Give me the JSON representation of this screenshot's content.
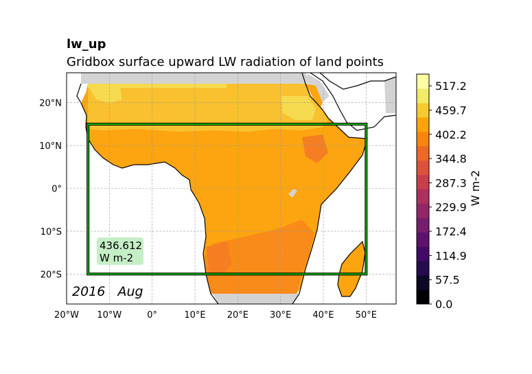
{
  "titles": {
    "short": "lw_up",
    "long": "Gridbox surface upward LW radiation of land points"
  },
  "map": {
    "extent": {
      "lon_min": -20,
      "lon_max": 57,
      "lat_min": -27,
      "lat_max": 27
    },
    "lon_ticks": [
      {
        "lon": -20,
        "label": "20°W"
      },
      {
        "lon": -10,
        "label": "10°W"
      },
      {
        "lon": 0,
        "label": "0°"
      },
      {
        "lon": 10,
        "label": "10°E"
      },
      {
        "lon": 20,
        "label": "20°E"
      },
      {
        "lon": 30,
        "label": "30°E"
      },
      {
        "lon": 40,
        "label": "40°E"
      },
      {
        "lon": 50,
        "label": "50°E"
      }
    ],
    "lat_ticks": [
      {
        "lat": 20,
        "label": "20°N"
      },
      {
        "lat": 10,
        "label": "10°N"
      },
      {
        "lat": 0,
        "label": "0°"
      },
      {
        "lat": -10,
        "label": "10°S"
      },
      {
        "lat": -20,
        "label": "20°S"
      }
    ],
    "grid": true,
    "region_box": {
      "lon_min": -15,
      "lon_max": 50,
      "lat_min": -20,
      "lat_max": 15,
      "color": "#00c800"
    },
    "annotation": {
      "value": "436.612",
      "units": "W m-2",
      "background": "#c6eec6"
    },
    "date_label": "2016   Aug",
    "colors": {
      "ocean": "#ffffff",
      "masked_land": "#d3d3d3",
      "field_main": "#fca510",
      "field_north": "#f9c12f",
      "field_sahara": "#f6da4f",
      "field_south": "#f88b1a",
      "field_hot": "#f57e22"
    }
  },
  "colorbar": {
    "label": "W m-2",
    "vmin": 0.0,
    "vmax": 545.0,
    "tick_labels": [
      "0.0",
      "57.5",
      "114.9",
      "172.4",
      "229.9",
      "287.3",
      "344.8",
      "402.2",
      "459.7",
      "517.2"
    ],
    "tick_values": [
      0.0,
      57.5,
      114.9,
      172.4,
      229.9,
      287.3,
      344.8,
      402.2,
      459.7,
      517.2
    ],
    "colors": [
      "#000004",
      "#0c0826",
      "#240c4f",
      "#420a68",
      "#5d126e",
      "#781c6d",
      "#932667",
      "#ad305d",
      "#c73e4c",
      "#dd513a",
      "#ed6925",
      "#f8850f",
      "#fba40a",
      "#f9c932",
      "#f2ea69",
      "#fcfea4"
    ]
  }
}
